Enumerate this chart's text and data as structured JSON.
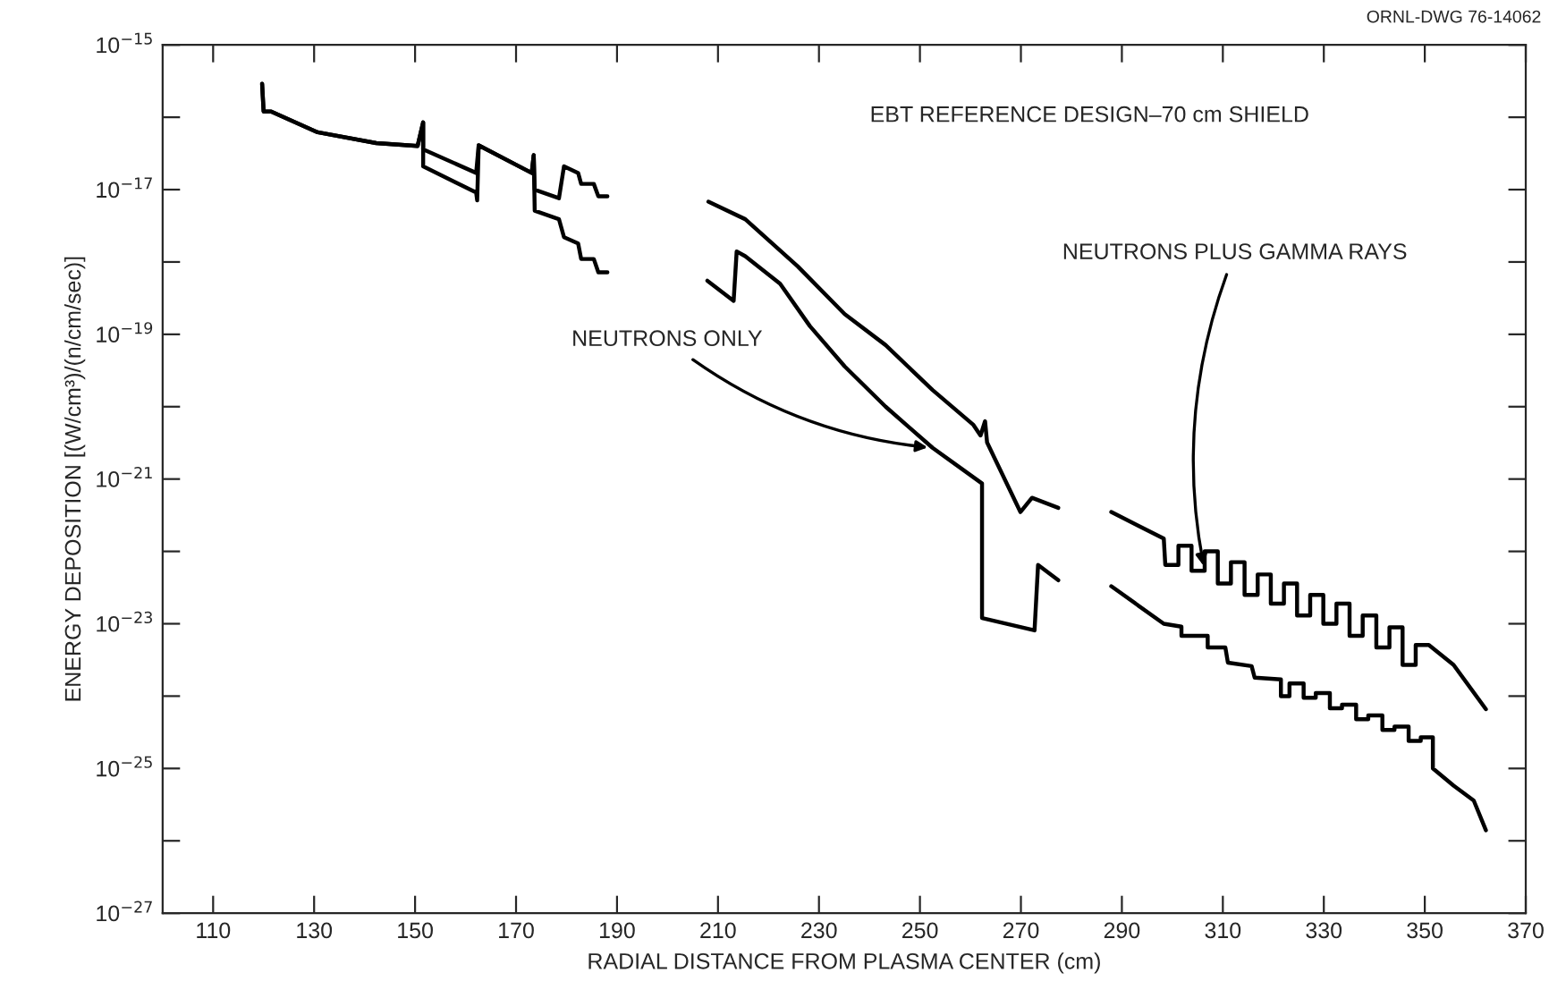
{
  "chart_data": {
    "type": "line",
    "xlabel": "RADIAL DISTANCE FROM PLASMA CENTER (cm)",
    "ylabel": "ENERGY DEPOSITION [(W/cm³)/(n/cm/sec)]",
    "annotations": [
      "EBT REFERENCE DESIGN–70 cm SHIELD",
      "ORNL-DWG 76-14062"
    ],
    "log": "y",
    "grid": false,
    "legend": false,
    "marker": "none",
    "line_style": "solid",
    "xlim": [
      100,
      370
    ],
    "xticks": [
      110,
      130,
      150,
      170,
      190,
      210,
      230,
      250,
      270,
      290,
      310,
      330,
      350,
      370
    ],
    "ylim": [
      1e-27,
      1e-15
    ],
    "yticks": [
      {
        "value": 1e-27,
        "label": "10$^{−27}$"
      },
      {
        "value": 1e-26,
        "label": null
      },
      {
        "value": 1e-25,
        "label": "10$^{−25}$"
      },
      {
        "value": 1e-24,
        "label": null
      },
      {
        "value": 1e-23,
        "label": "10$^{−23}$"
      },
      {
        "value": 1e-22,
        "label": null
      },
      {
        "value": 1e-21,
        "label": "10$^{−21}$"
      },
      {
        "value": 1e-20,
        "label": null
      },
      {
        "value": 1e-19,
        "label": "10$^{−19}$"
      },
      {
        "value": 1e-18,
        "label": null
      },
      {
        "value": 1e-17,
        "label": "10$^{−17}$"
      },
      {
        "value": 1e-16,
        "label": null
      },
      {
        "value": 1e-15,
        "label": "10$^{−15}$"
      }
    ],
    "series": [
      {
        "name": "NEUTRONS PLUS GAMMA RAYS",
        "color": "#000000",
        "x": [
          119.7,
          120.0,
          121.5,
          130.7,
          142.3,
          150.5,
          151.6,
          151.6,
          162.1,
          162.6,
          173.1,
          173.5,
          173.7,
          178.5,
          179.5,
          182.3,
          182.9,
          185.4,
          186.3,
          188.1,
          198.0,
          208.1,
          215.4,
          225.8,
          235.1,
          243.2,
          252.5,
          260.6,
          262.0,
          262.9,
          263.3,
          269.9,
          272.2,
          277.4,
          282.0,
          287.9,
          298.3,
          298.6,
          301.2,
          301.2,
          303.8,
          303.8,
          306.4,
          306.4,
          309.0,
          309.0,
          311.6,
          311.6,
          314.3,
          314.3,
          316.9,
          316.9,
          319.5,
          319.5,
          322.1,
          322.1,
          324.7,
          324.7,
          327.3,
          327.3,
          329.9,
          329.9,
          332.5,
          332.5,
          335.1,
          335.1,
          337.7,
          337.7,
          340.4,
          340.4,
          343.0,
          343.0,
          345.6,
          345.6,
          348.2,
          348.2,
          350.8,
          355.7,
          362.1
        ],
        "values": [
          2.9e-16,
          1.2e-16,
          1.2e-16,
          6.2e-17,
          4.4e-17,
          4e-17,
          8.5e-17,
          3.6e-17,
          1.7e-17,
          4.1e-17,
          1.7e-17,
          3e-17,
          1e-17,
          7.6e-18,
          2.1e-17,
          1.7e-17,
          1.2e-17,
          1.2e-17,
          8.1e-18,
          8.1e-18,
          null,
          6.8e-18,
          3.9e-18,
          8.7e-19,
          1.9e-19,
          7.1e-20,
          1.7e-20,
          5.6e-21,
          4e-21,
          6.3e-21,
          3.2e-21,
          3.5e-22,
          5.5e-22,
          4e-22,
          null,
          3.5e-22,
          1.5e-22,
          6.5e-23,
          6.5e-23,
          1.2e-22,
          1.2e-22,
          5.4e-23,
          5.4e-23,
          1e-22,
          1e-22,
          3.6e-23,
          3.6e-23,
          7.1e-23,
          7.1e-23,
          2.5e-23,
          2.5e-23,
          4.8e-23,
          4.8e-23,
          1.9e-23,
          1.9e-23,
          3.6e-23,
          3.6e-23,
          1.3e-23,
          1.3e-23,
          2.5e-23,
          2.5e-23,
          1e-23,
          1e-23,
          1.9e-23,
          1.9e-23,
          6.8e-24,
          6.8e-24,
          1.3e-23,
          1.3e-23,
          4.7e-24,
          4.7e-24,
          8.9e-24,
          8.9e-24,
          2.7e-24,
          2.7e-24,
          5.1e-24,
          5.1e-24,
          2.7e-24,
          6.6e-25
        ]
      },
      {
        "name": "NEUTRONS ONLY",
        "color": "#000000",
        "x": [
          119.7,
          120.0,
          121.5,
          130.7,
          142.3,
          150.5,
          151.6,
          151.6,
          162.1,
          162.3,
          162.6,
          173.1,
          173.5,
          173.7,
          178.5,
          179.5,
          182.3,
          182.9,
          185.4,
          186.3,
          188.1,
          198.0,
          207.9,
          213.1,
          213.7,
          215.4,
          222.3,
          228.2,
          235.1,
          243.2,
          252.5,
          262.3,
          262.3,
          272.7,
          273.4,
          277.4,
          282.0,
          287.9,
          298.3,
          301.8,
          301.8,
          307.0,
          307.0,
          310.5,
          311.0,
          315.7,
          316.3,
          321.5,
          321.5,
          323.2,
          323.2,
          326.0,
          326.0,
          328.4,
          328.4,
          331.2,
          331.2,
          333.6,
          333.6,
          336.4,
          336.4,
          338.8,
          338.8,
          341.6,
          341.6,
          344.0,
          344.0,
          346.8,
          346.8,
          349.2,
          349.2,
          351.6,
          351.6,
          355.7,
          359.7,
          362.1
        ],
        "values": [
          2.9e-16,
          1.2e-16,
          1.2e-16,
          6.2e-17,
          4.4e-17,
          4e-17,
          8.5e-17,
          2.1e-17,
          9.1e-18,
          7.1e-18,
          4.1e-17,
          1.7e-17,
          3e-17,
          5.1e-18,
          3.9e-18,
          2.2e-18,
          1.8e-18,
          1.1e-18,
          1.1e-18,
          7.2e-19,
          7.2e-19,
          null,
          5.5e-19,
          2.9e-19,
          1.4e-18,
          1.2e-18,
          5e-19,
          1.3e-19,
          3.6e-20,
          1e-20,
          2.7e-21,
          8.7e-22,
          1.2e-23,
          8.1e-24,
          6.5e-23,
          4e-23,
          null,
          3.3e-23,
          1e-23,
          9.1e-24,
          6.8e-24,
          6.8e-24,
          4.7e-24,
          4.7e-24,
          2.9e-24,
          2.6e-24,
          1.8e-24,
          1.7e-24,
          1e-24,
          1e-24,
          1.5e-24,
          1.5e-24,
          9.5e-25,
          9.5e-25,
          1.1e-24,
          1.1e-24,
          6.8e-25,
          6.8e-25,
          7.6e-25,
          7.6e-25,
          4.8e-25,
          4.8e-25,
          5.4e-25,
          5.4e-25,
          3.4e-25,
          3.4e-25,
          3.8e-25,
          3.8e-25,
          2.4e-25,
          2.4e-25,
          2.7e-25,
          2.7e-25,
          1e-25,
          5.8e-26,
          3.6e-26,
          1.4e-26
        ]
      }
    ]
  }
}
